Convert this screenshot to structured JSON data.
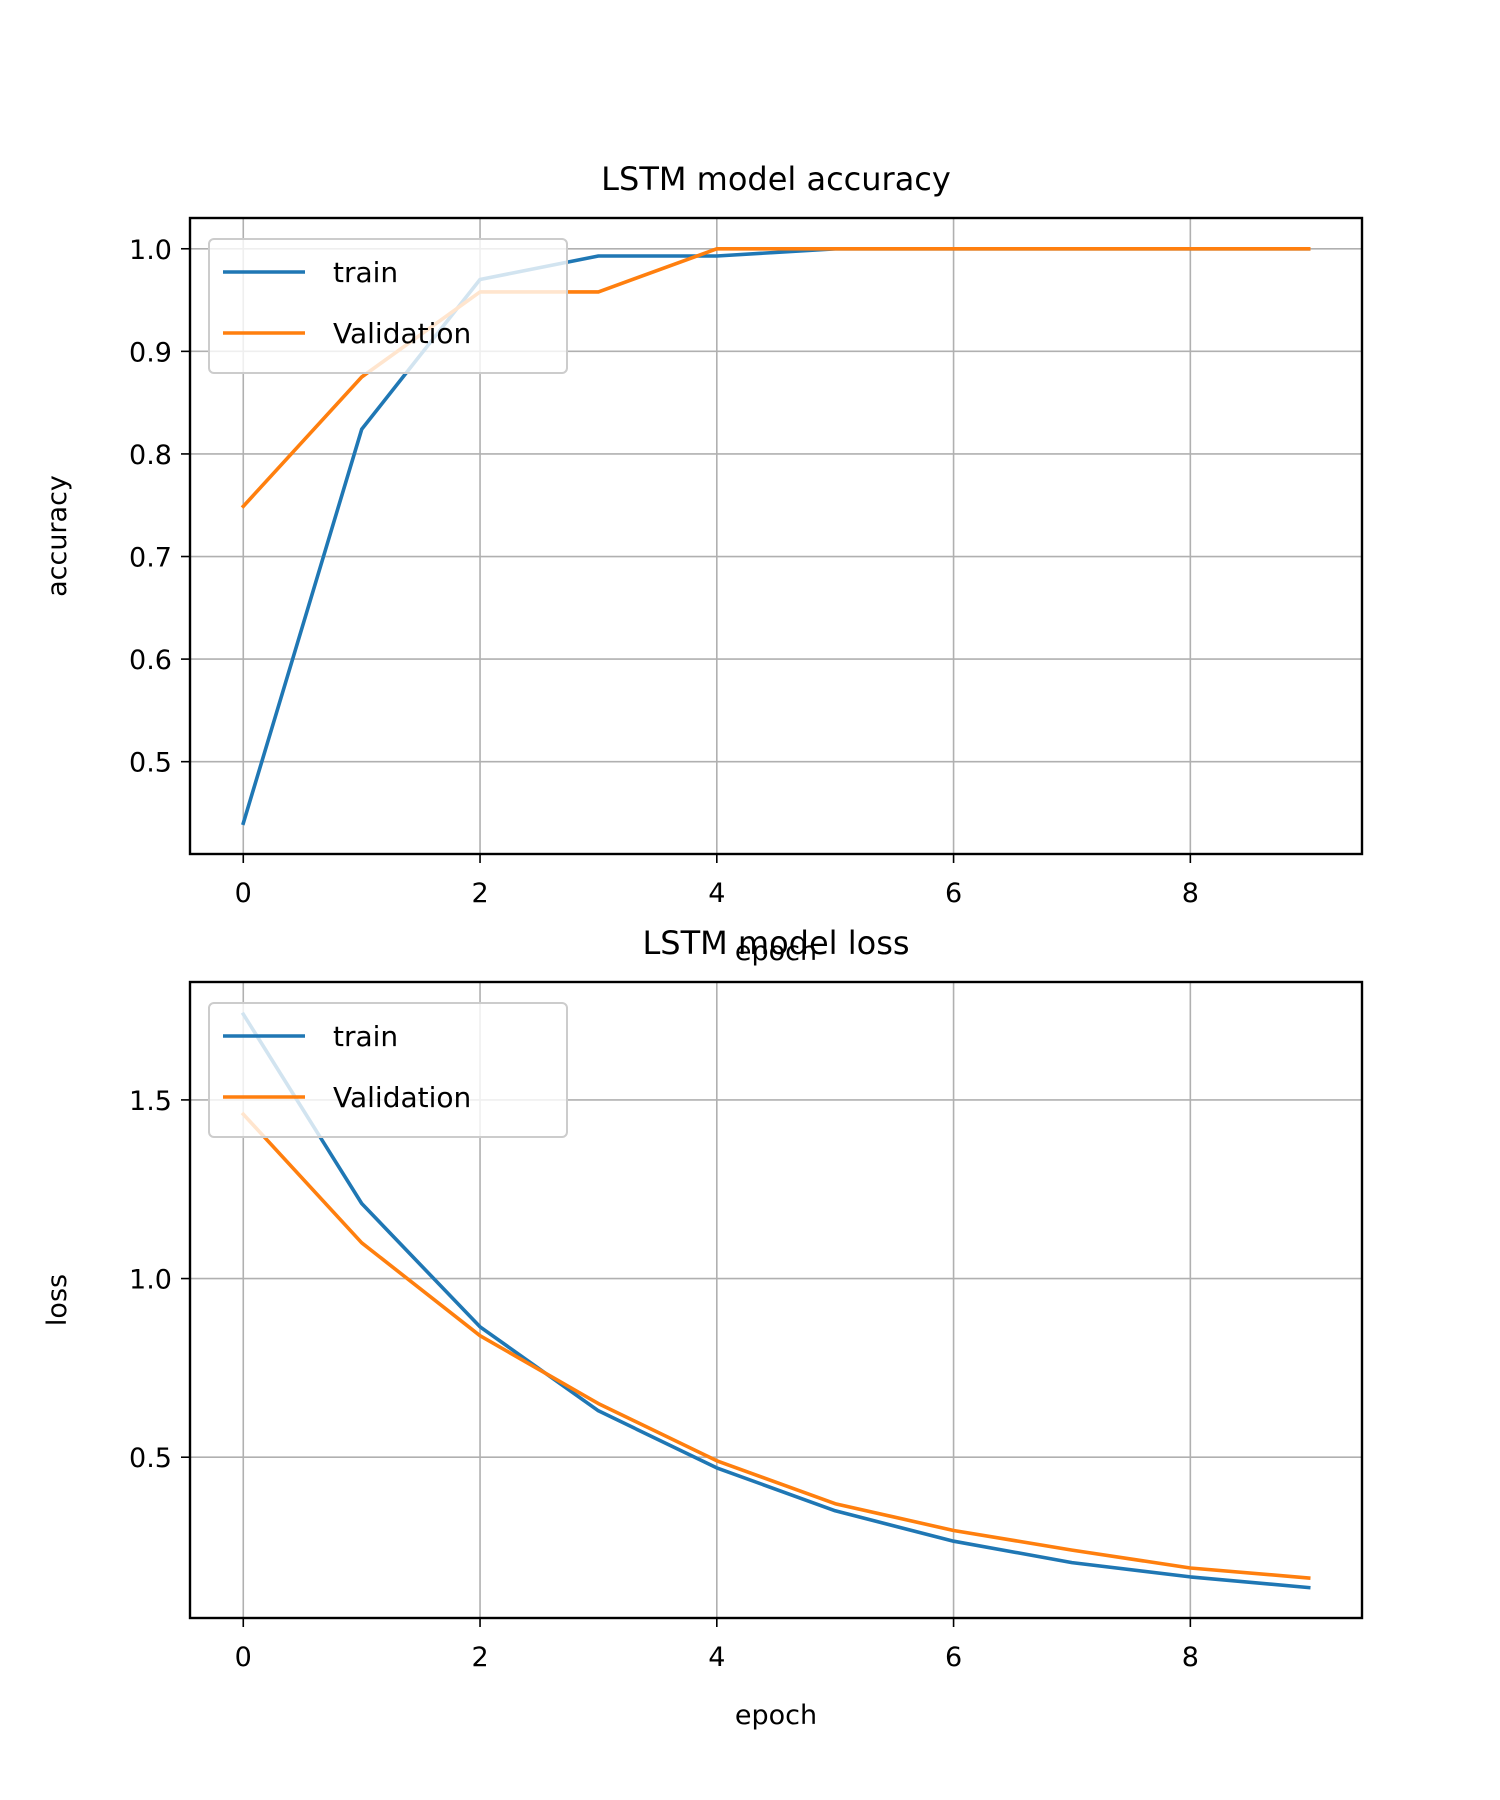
{
  "chart_data": [
    {
      "type": "line",
      "title": "LSTM model accuracy",
      "xlabel": "epoch",
      "ylabel": "accuracy",
      "xlim": [
        -0.45,
        9.45
      ],
      "ylim": [
        0.41,
        1.03
      ],
      "xticks": [
        0,
        2,
        4,
        6,
        8
      ],
      "yticks": [
        0.5,
        0.6,
        0.7,
        0.8,
        0.9,
        1.0
      ],
      "ytick_labels": [
        "0.5",
        "0.6",
        "0.7",
        "0.8",
        "0.9",
        "1.0"
      ],
      "grid": true,
      "legend_position": "upper-left",
      "x": [
        0,
        1,
        2,
        3,
        4,
        5,
        6,
        7,
        8,
        9
      ],
      "series": [
        {
          "name": "train",
          "color": "#1f77b4",
          "values": [
            0.44,
            0.824,
            0.97,
            0.993,
            0.993,
            1.0,
            1.0,
            1.0,
            1.0,
            1.0
          ]
        },
        {
          "name": "Validation",
          "color": "#ff7f0e",
          "values": [
            0.749,
            0.875,
            0.958,
            0.958,
            1.0,
            1.0,
            1.0,
            1.0,
            1.0,
            1.0
          ]
        }
      ]
    },
    {
      "type": "line",
      "title": "LSTM model loss",
      "xlabel": "epoch",
      "ylabel": "loss",
      "xlim": [
        -0.45,
        9.45
      ],
      "ylim": [
        0.05,
        1.83
      ],
      "xticks": [
        0,
        2,
        4,
        6,
        8
      ],
      "yticks": [
        0.5,
        1.0,
        1.5
      ],
      "ytick_labels": [
        "0.5",
        "1.0",
        "1.5"
      ],
      "grid": true,
      "legend_position": "upper-left",
      "x": [
        0,
        1,
        2,
        3,
        4,
        5,
        6,
        7,
        8,
        9
      ],
      "series": [
        {
          "name": "train",
          "color": "#1f77b4",
          "values": [
            1.74,
            1.21,
            0.865,
            0.63,
            0.47,
            0.35,
            0.265,
            0.205,
            0.165,
            0.135
          ]
        },
        {
          "name": "Validation",
          "color": "#ff7f0e",
          "values": [
            1.46,
            1.1,
            0.84,
            0.65,
            0.49,
            0.37,
            0.295,
            0.24,
            0.19,
            0.162
          ]
        }
      ]
    }
  ]
}
